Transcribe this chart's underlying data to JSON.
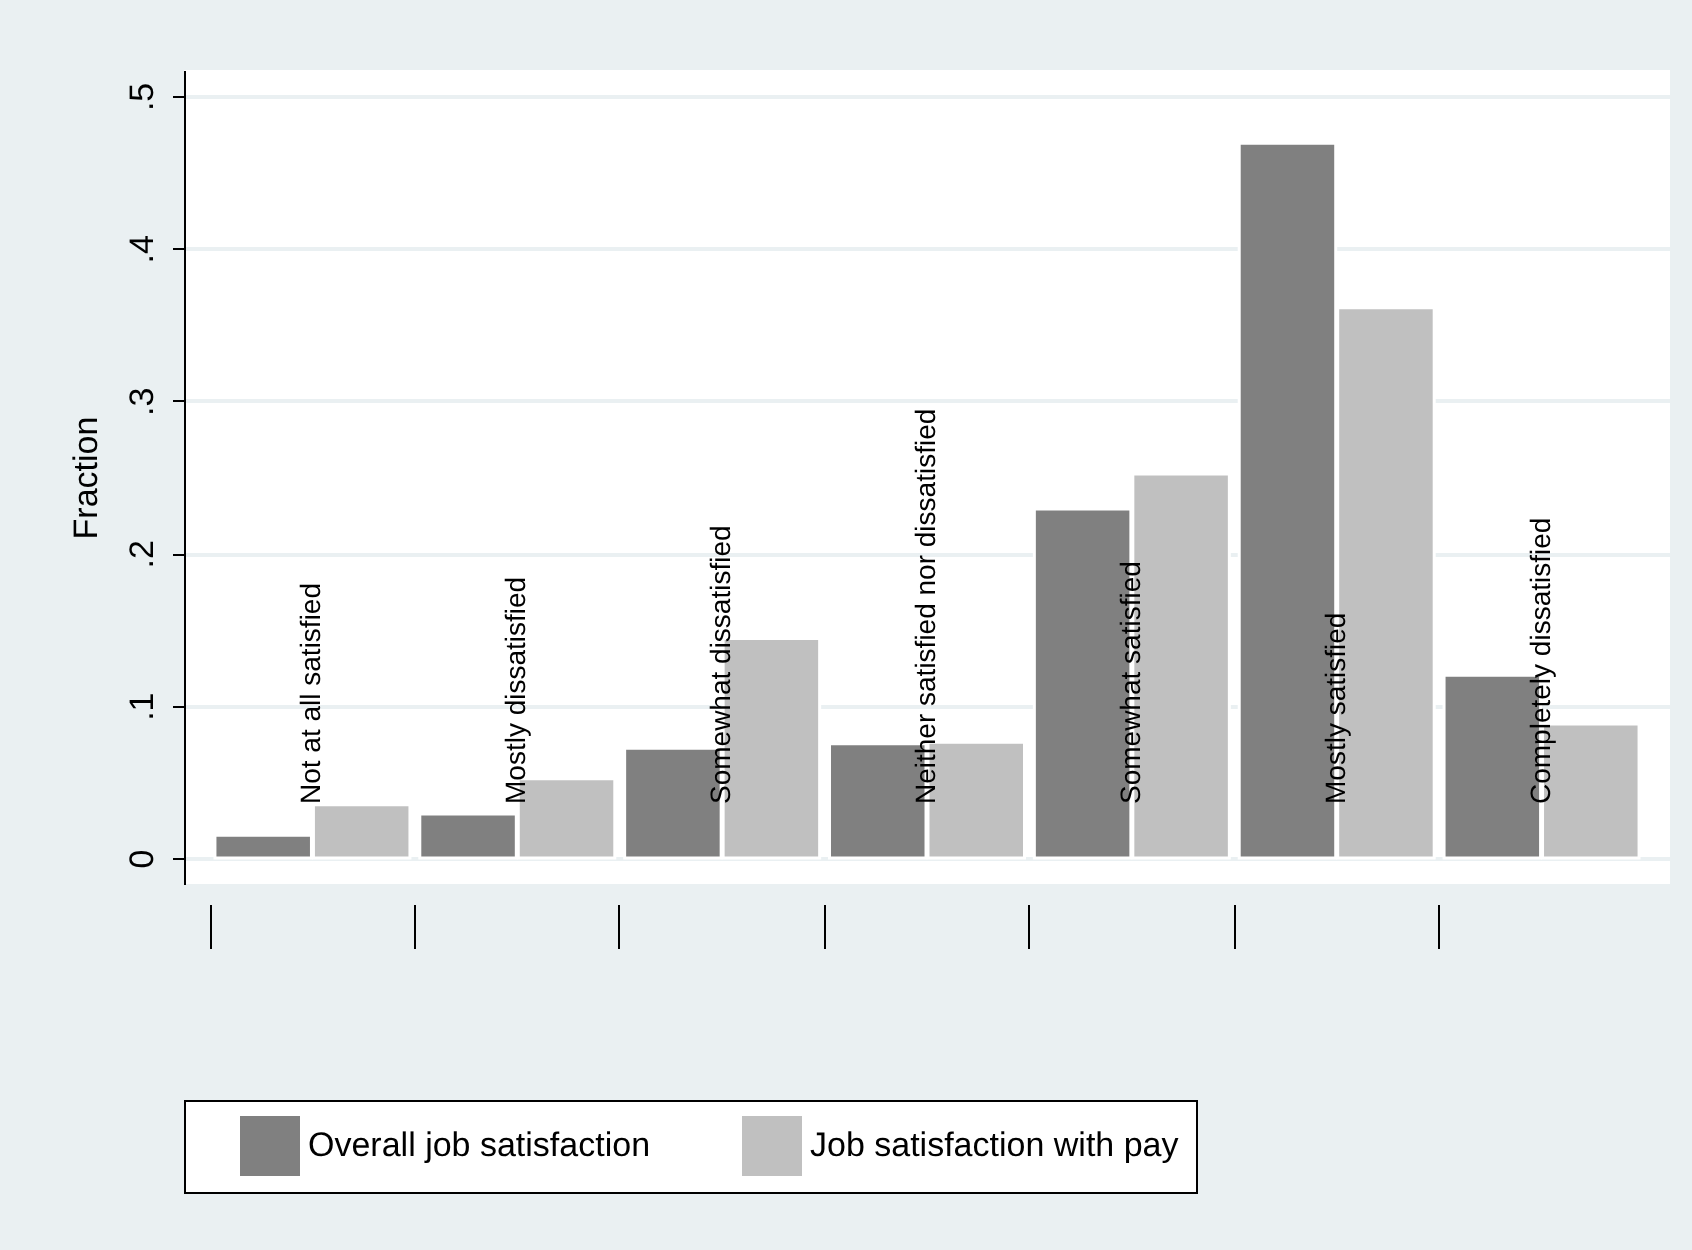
{
  "chart_data": {
    "type": "bar",
    "ylabel": "Fraction",
    "categories": [
      "Not at all satisfied",
      "Mostly dissatisfied",
      "Somewhat dissatisfied",
      "Neither satisfied nor dissatisfied",
      "Somewhat satisfied",
      "Mostly satisfied",
      "Completely dissatisfied"
    ],
    "series": [
      {
        "name": "Overall job satisfaction",
        "color": "#808080",
        "values": [
          0.015,
          0.029,
          0.072,
          0.075,
          0.229,
          0.469,
          0.12
        ]
      },
      {
        "name": "Job satisfaction with pay",
        "color": "#c0c0c0",
        "values": [
          0.035,
          0.052,
          0.144,
          0.076,
          0.252,
          0.361,
          0.088
        ]
      }
    ],
    "ylim": [
      -0.017,
      0.517
    ],
    "yticks": [
      {
        "value": 0,
        "label": "0"
      },
      {
        "value": 0.1,
        "label": ".1"
      },
      {
        "value": 0.2,
        "label": ".2"
      },
      {
        "value": 0.3,
        "label": ".3"
      },
      {
        "value": 0.4,
        "label": ".4"
      },
      {
        "value": 0.5,
        "label": ".5"
      }
    ],
    "grid": "y",
    "legend": "bottom"
  }
}
